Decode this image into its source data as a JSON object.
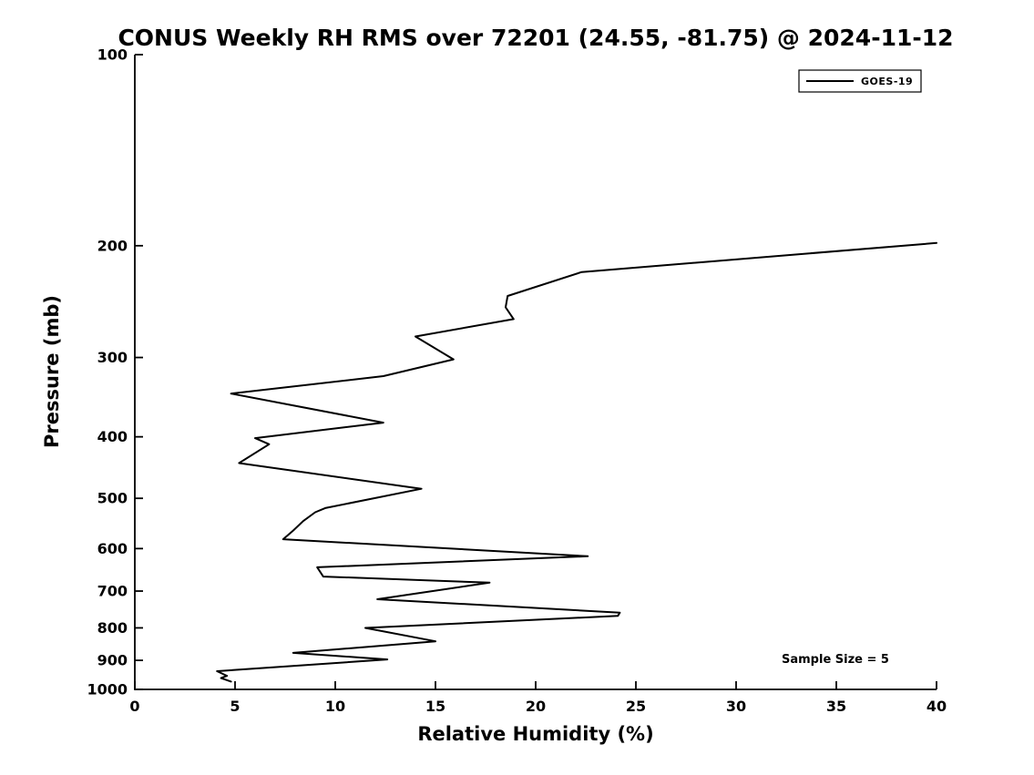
{
  "chart_data": {
    "type": "line",
    "title": "CONUS Weekly RH RMS over 72201 (24.55, -81.75) @ 2024-11-12",
    "xlabel": "Relative Humidity (%)",
    "ylabel": "Pressure (mb)",
    "xlim": [
      0,
      40
    ],
    "ylim": [
      100,
      1000
    ],
    "y_scale": "log",
    "y_inverted": true,
    "grid": false,
    "x_ticks": [
      0,
      5,
      10,
      15,
      20,
      25,
      30,
      35,
      40
    ],
    "y_ticks": [
      100,
      200,
      300,
      400,
      500,
      600,
      700,
      800,
      900,
      1000
    ],
    "legend": {
      "position": "top-right",
      "entries": [
        {
          "label": "GOES-19",
          "color": "#000000",
          "line_style": "solid"
        }
      ]
    },
    "annotation": "Sample Size = 5",
    "series": [
      {
        "name": "GOES-19",
        "color": "#000000",
        "points_format": [
          "rh_percent",
          "pressure_mb"
        ],
        "points": [
          [
            40.0,
            198
          ],
          [
            22.3,
            220
          ],
          [
            18.6,
            240
          ],
          [
            18.5,
            250
          ],
          [
            18.9,
            261
          ],
          [
            14.0,
            278
          ],
          [
            15.9,
            302
          ],
          [
            12.4,
            321
          ],
          [
            4.8,
            342
          ],
          [
            12.4,
            380
          ],
          [
            6.0,
            402
          ],
          [
            6.7,
            411
          ],
          [
            5.2,
            440
          ],
          [
            14.3,
            483
          ],
          [
            9.5,
            518
          ],
          [
            9.0,
            526
          ],
          [
            8.4,
            543
          ],
          [
            7.9,
            562
          ],
          [
            7.4,
            580
          ],
          [
            22.6,
            617
          ],
          [
            9.1,
            642
          ],
          [
            9.4,
            664
          ],
          [
            17.7,
            679
          ],
          [
            12.1,
            721
          ],
          [
            24.2,
            757
          ],
          [
            24.1,
            766
          ],
          [
            11.5,
            800
          ],
          [
            15.0,
            840
          ],
          [
            7.9,
            876
          ],
          [
            12.6,
            897
          ],
          [
            4.1,
            936
          ],
          [
            4.6,
            952
          ],
          [
            4.3,
            960
          ],
          [
            4.8,
            972
          ]
        ]
      }
    ]
  }
}
